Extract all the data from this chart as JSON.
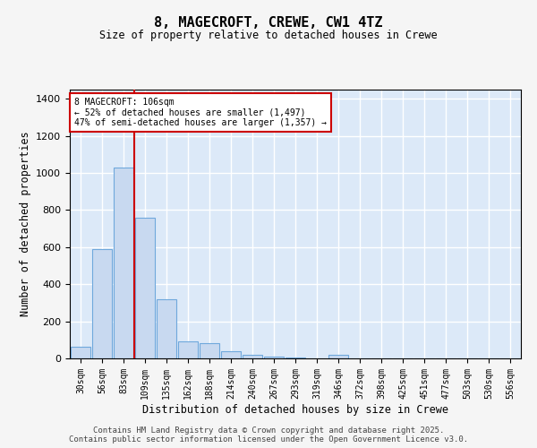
{
  "title": "8, MAGECROFT, CREWE, CW1 4TZ",
  "subtitle": "Size of property relative to detached houses in Crewe",
  "xlabel": "Distribution of detached houses by size in Crewe",
  "ylabel": "Number of detached properties",
  "bar_color": "#c8d9f0",
  "bar_edge_color": "#6fa8dc",
  "background_color": "#dce9f8",
  "grid_color": "#ffffff",
  "categories": [
    "30sqm",
    "56sqm",
    "83sqm",
    "109sqm",
    "135sqm",
    "162sqm",
    "188sqm",
    "214sqm",
    "240sqm",
    "267sqm",
    "293sqm",
    "319sqm",
    "346sqm",
    "372sqm",
    "398sqm",
    "425sqm",
    "451sqm",
    "477sqm",
    "503sqm",
    "530sqm",
    "556sqm"
  ],
  "values": [
    65,
    590,
    1030,
    760,
    320,
    90,
    80,
    40,
    20,
    10,
    5,
    0,
    20,
    0,
    0,
    0,
    0,
    0,
    0,
    0,
    0
  ],
  "ylim": [
    0,
    1450
  ],
  "yticks": [
    0,
    200,
    400,
    600,
    800,
    1000,
    1200,
    1400
  ],
  "property_line_bin": 2.5,
  "property_label": "8 MAGECROFT: 106sqm",
  "annotation_line1": "← 52% of detached houses are smaller (1,497)",
  "annotation_line2": "47% of semi-detached houses are larger (1,357) →",
  "annotation_box_color": "#ffffff",
  "annotation_box_edge": "#cc0000",
  "red_line_color": "#cc0000",
  "fig_bg": "#f5f5f5",
  "footer_line1": "Contains HM Land Registry data © Crown copyright and database right 2025.",
  "footer_line2": "Contains public sector information licensed under the Open Government Licence v3.0."
}
